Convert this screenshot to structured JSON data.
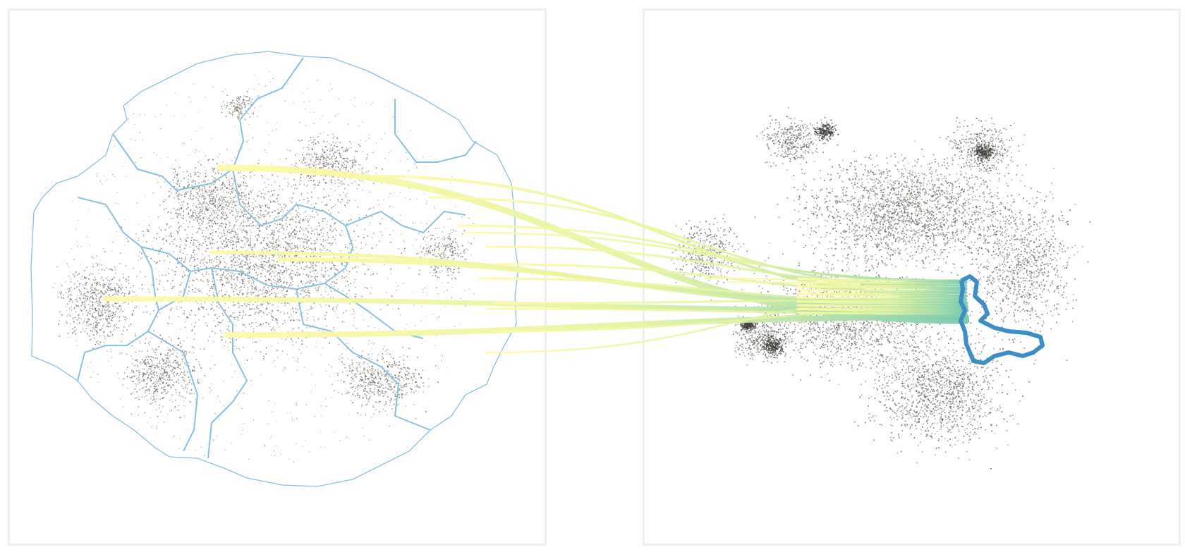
{
  "panels": [
    {
      "id": "left",
      "kind": "embedding-with-region-boundaries"
    },
    {
      "id": "right",
      "kind": "embedding-with-highlighted-region"
    }
  ],
  "colors": {
    "background": "#ffffff",
    "panel_border": "#efefef",
    "boundary_line": "#8cc0dc",
    "highlight_region": "#3d8ec4",
    "point_palette": [
      "#6e6a64",
      "#8a7b6a",
      "#9c8f83",
      "#5c5a58",
      "#a79c92",
      "#7f8894",
      "#4d4a46",
      "#b3a291",
      "#8e99a6",
      "#706050"
    ],
    "flow_gradient": [
      "#fff8a6",
      "#d6ef9f",
      "#9fdbab",
      "#6fc3b0"
    ]
  },
  "flows": {
    "count": 18,
    "direction": "left-to-right"
  }
}
